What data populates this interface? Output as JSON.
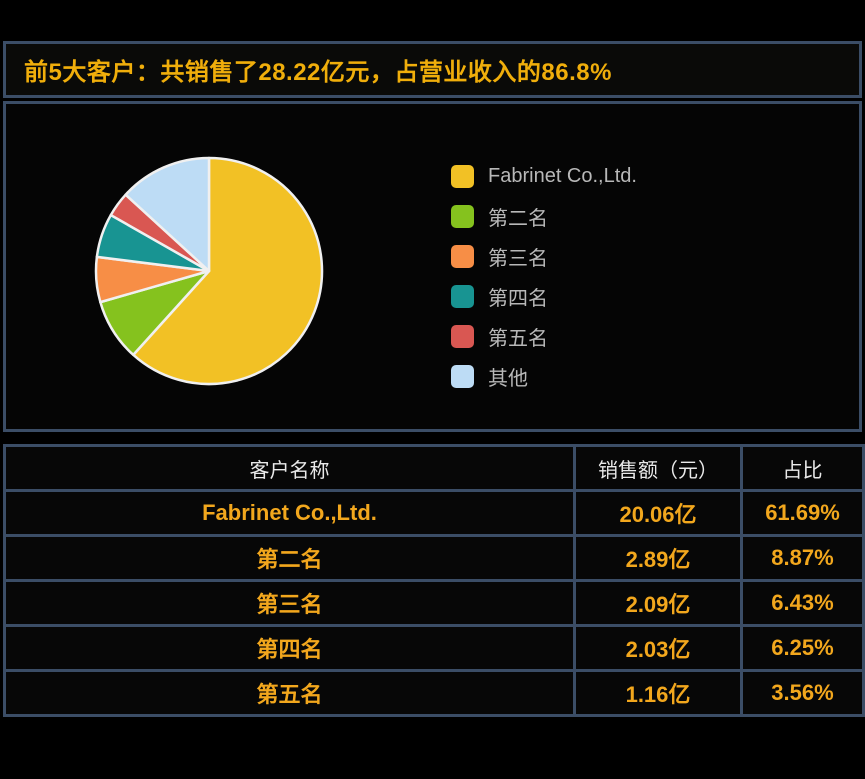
{
  "title": {
    "text": "前5大客户：共销售了28.22亿元，占营业收入的86.8%"
  },
  "colors": {
    "title_gold": "#f0ae0b",
    "table_gold": "#f2a71d",
    "panel_border_blue": "#3b4d66",
    "legend_text_gray": "#b8b8b8",
    "header_text": "#e9e9e9",
    "slice_separator": "#f0f0f0",
    "background": "#000000"
  },
  "chart_data": {
    "type": "pie",
    "title": "前5大客户：共销售了28.22亿元，占营业收入的86.8%",
    "total_sales_label": "28.22亿元",
    "total_revenue_share": "86.8%",
    "legend_position": "right",
    "start_angle": "top",
    "direction": "clockwise",
    "slices": [
      {
        "label": "Fabrinet Co.,Ltd.",
        "value_pct": 61.69,
        "sales": "20.06亿",
        "color": "#f2c125"
      },
      {
        "label": "第二名",
        "value_pct": 8.87,
        "sales": "2.89亿",
        "color": "#85c21e"
      },
      {
        "label": "第三名",
        "value_pct": 6.43,
        "sales": "2.09亿",
        "color": "#f78e46"
      },
      {
        "label": "第四名",
        "value_pct": 6.25,
        "sales": "2.03亿",
        "color": "#189492"
      },
      {
        "label": "第五名",
        "value_pct": 3.56,
        "sales": "1.16亿",
        "color": "#d95752"
      },
      {
        "label": "其他",
        "value_pct": 13.2,
        "sales": "",
        "color": "#bddcf5"
      }
    ]
  },
  "table": {
    "headers": {
      "name": "客户名称",
      "sales": "销售额（元）",
      "pct": "占比"
    },
    "rows": [
      {
        "name": "Fabrinet Co.,Ltd.",
        "sales": "20.06亿",
        "pct": "61.69%"
      },
      {
        "name": "第二名",
        "sales": "2.89亿",
        "pct": "8.87%"
      },
      {
        "name": "第三名",
        "sales": "2.09亿",
        "pct": "6.43%"
      },
      {
        "name": "第四名",
        "sales": "2.03亿",
        "pct": "6.25%"
      },
      {
        "name": "第五名",
        "sales": "1.16亿",
        "pct": "3.56%"
      }
    ]
  }
}
